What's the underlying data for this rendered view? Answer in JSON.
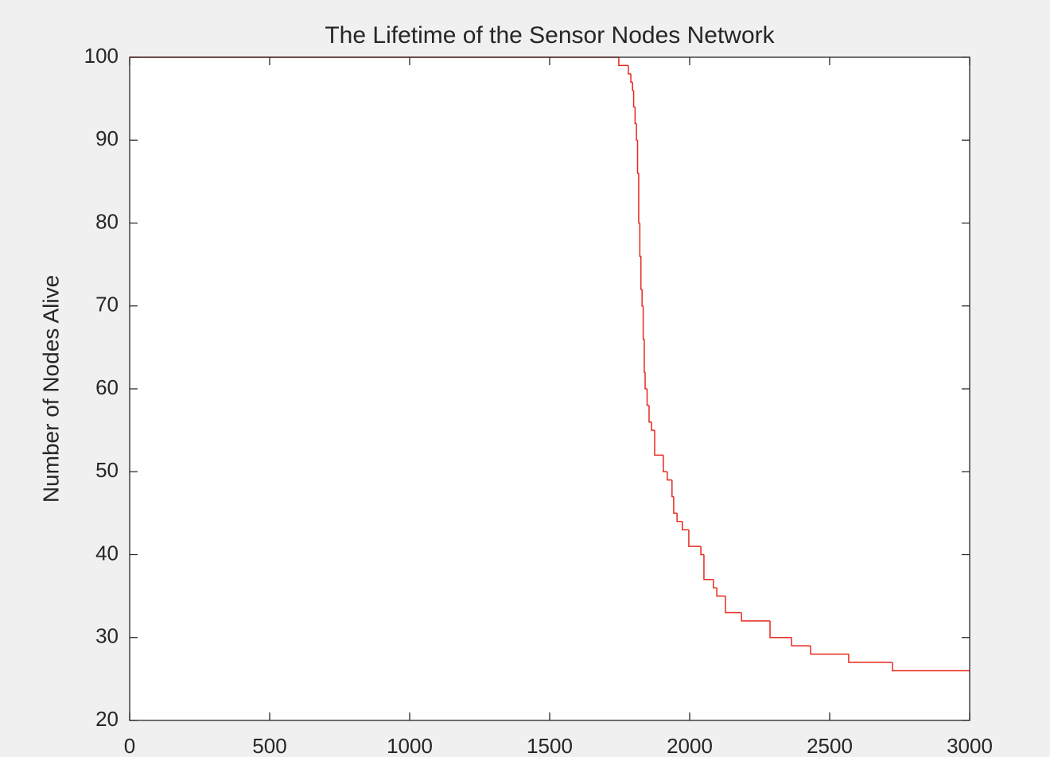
{
  "chart_data": {
    "type": "line",
    "drawstyle": "steps-post",
    "title": "The Lifetime of the Sensor Nodes Network",
    "ylabel": "Number of Nodes Alive",
    "x": [
      0,
      1747,
      1781,
      1790,
      1796,
      1800,
      1805,
      1810,
      1814,
      1818,
      1822,
      1826,
      1830,
      1834,
      1838,
      1841,
      1848,
      1855,
      1864,
      1875,
      1906,
      1920,
      1937,
      1943,
      1955,
      1974,
      1997,
      2040,
      2051,
      2085,
      2097,
      2128,
      2185,
      2287,
      2364,
      2432,
      2568,
      2724,
      3000
    ],
    "values": [
      100,
      99,
      98,
      97,
      96,
      94,
      92,
      90,
      86,
      80,
      76,
      72,
      70,
      66,
      62,
      60,
      58,
      56,
      55,
      52,
      50,
      49,
      47,
      45,
      44,
      43,
      41,
      40,
      37,
      36,
      35,
      33,
      32,
      30,
      29,
      28,
      27,
      26,
      26
    ],
    "color": "#e8281e",
    "xlim": [
      0,
      3000
    ],
    "xticks": [
      0,
      500,
      1000,
      1500,
      2000,
      2500,
      3000
    ],
    "ylim": [
      20,
      100
    ],
    "yticks": [
      20,
      30,
      40,
      50,
      60,
      70,
      80,
      90,
      100
    ],
    "grid": false
  }
}
